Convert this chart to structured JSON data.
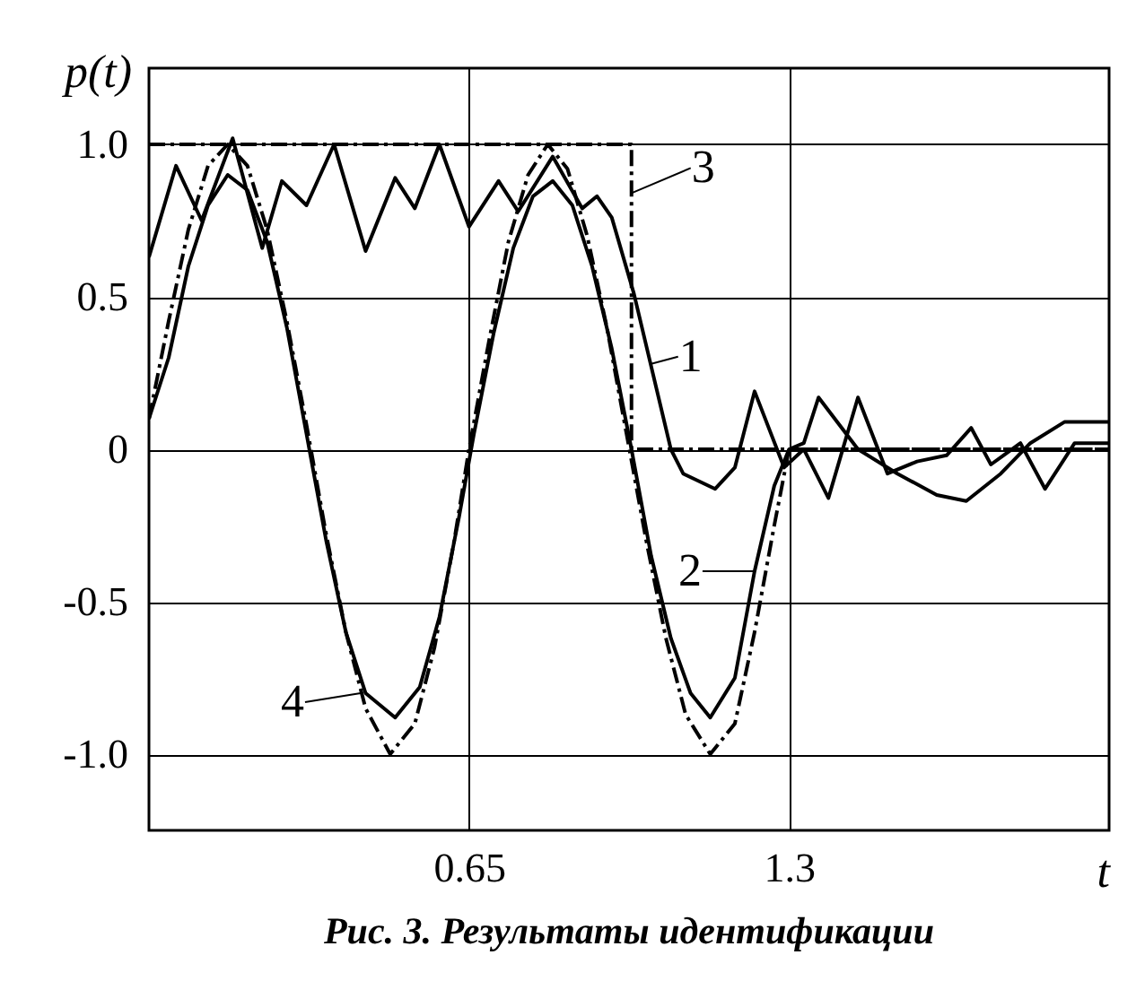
{
  "chart_data": {
    "type": "line",
    "title": "Рис. 3. Результаты идентификации",
    "xlabel": "t",
    "ylabel": "p(t)",
    "xlim": [
      0,
      1.95
    ],
    "xticks": [
      0.65,
      1.3
    ],
    "ylim": [
      -1.25,
      1.25
    ],
    "yticks": [
      {
        "value": -1,
        "label": "-1.0"
      },
      -0.5,
      0,
      0.5,
      {
        "value": 1,
        "label": "1.0"
      }
    ],
    "grid": true,
    "series": [
      {
        "color": "#000000",
        "line_style": "solid",
        "x": [
          0,
          0.055,
          0.107,
          0.17,
          0.23,
          0.27,
          0.32,
          0.376,
          0.44,
          0.5,
          0.54,
          0.59,
          0.65,
          0.71,
          0.75,
          0.82,
          0.88,
          0.91,
          0.94,
          0.985,
          1.06,
          1.085,
          1.15,
          1.19,
          1.23,
          1.29,
          1.33,
          1.38,
          1.44,
          1.5,
          1.56,
          1.62,
          1.67,
          1.71,
          1.77,
          1.82,
          1.88,
          1.95
        ],
        "values": [
          0.63,
          0.93,
          0.75,
          1.02,
          0.66,
          0.88,
          0.8,
          1.0,
          0.65,
          0.89,
          0.79,
          1.0,
          0.73,
          0.88,
          0.78,
          0.96,
          0.79,
          0.83,
          0.76,
          0.51,
          0,
          -0.08,
          -0.13,
          -0.06,
          0.19,
          -0.06,
          0,
          -0.16,
          0.17,
          -0.08,
          -0.04,
          -0.02,
          0.07,
          -0.05,
          0.02,
          -0.13,
          0.02,
          0.02
        ]
      },
      {
        "color": "#000000",
        "line_style": "solid",
        "x": [
          0,
          0.04,
          0.08,
          0.12,
          0.16,
          0.2,
          0.24,
          0.28,
          0.32,
          0.36,
          0.4,
          0.44,
          0.5,
          0.55,
          0.59,
          0.63,
          0.66,
          0.7,
          0.74,
          0.78,
          0.82,
          0.86,
          0.9,
          0.94,
          0.98,
          1.02,
          1.06,
          1.1,
          1.14,
          1.19,
          1.23,
          1.27,
          1.3,
          1.33,
          1.36,
          1.44,
          1.52,
          1.6,
          1.66,
          1.73,
          1.79,
          1.86,
          1.95
        ],
        "values": [
          0.1,
          0.3,
          0.6,
          0.8,
          0.9,
          0.85,
          0.68,
          0.4,
          0.05,
          -0.3,
          -0.6,
          -0.8,
          -0.88,
          -0.78,
          -0.55,
          -0.22,
          0.05,
          0.38,
          0.66,
          0.83,
          0.88,
          0.8,
          0.6,
          0.33,
          0.0,
          -0.35,
          -0.62,
          -0.8,
          -0.88,
          -0.75,
          -0.4,
          -0.12,
          0,
          0.02,
          0.17,
          0,
          -0.08,
          -0.15,
          -0.17,
          -0.08,
          0.02,
          0.09,
          0.09
        ]
      },
      {
        "color": "#000000",
        "line_style": "dashed",
        "x": [
          0,
          0.98,
          0.98,
          1.95
        ],
        "values": [
          1,
          1,
          0,
          0
        ]
      },
      {
        "color": "#000000",
        "line_style": "dashed",
        "x": [
          0,
          0.04,
          0.08,
          0.12,
          0.16,
          0.2,
          0.24,
          0.28,
          0.32,
          0.36,
          0.4,
          0.44,
          0.49,
          0.54,
          0.58,
          0.62,
          0.65,
          0.69,
          0.73,
          0.77,
          0.81,
          0.85,
          0.89,
          0.93,
          0.97,
          1.01,
          1.05,
          1.09,
          1.14,
          1.19,
          1.23,
          1.27,
          1.3,
          1.4,
          1.95
        ],
        "values": [
          0.1,
          0.42,
          0.72,
          0.93,
          1.0,
          0.93,
          0.72,
          0.42,
          0.08,
          -0.28,
          -0.6,
          -0.85,
          -1.0,
          -0.9,
          -0.65,
          -0.3,
          0,
          0.35,
          0.68,
          0.9,
          1.0,
          0.92,
          0.7,
          0.4,
          0.05,
          -0.3,
          -0.62,
          -0.87,
          -1.0,
          -0.9,
          -0.6,
          -0.25,
          0,
          0,
          0
        ]
      }
    ],
    "annotations": [
      {
        "text": "1",
        "x": 1.02,
        "y": 0.28
      },
      {
        "text": "2",
        "x": 1.23,
        "y": -0.4
      },
      {
        "text": "3",
        "x": 0.98,
        "y": 0.84
      },
      {
        "text": "4",
        "x": 0.43,
        "y": -0.8
      }
    ]
  }
}
